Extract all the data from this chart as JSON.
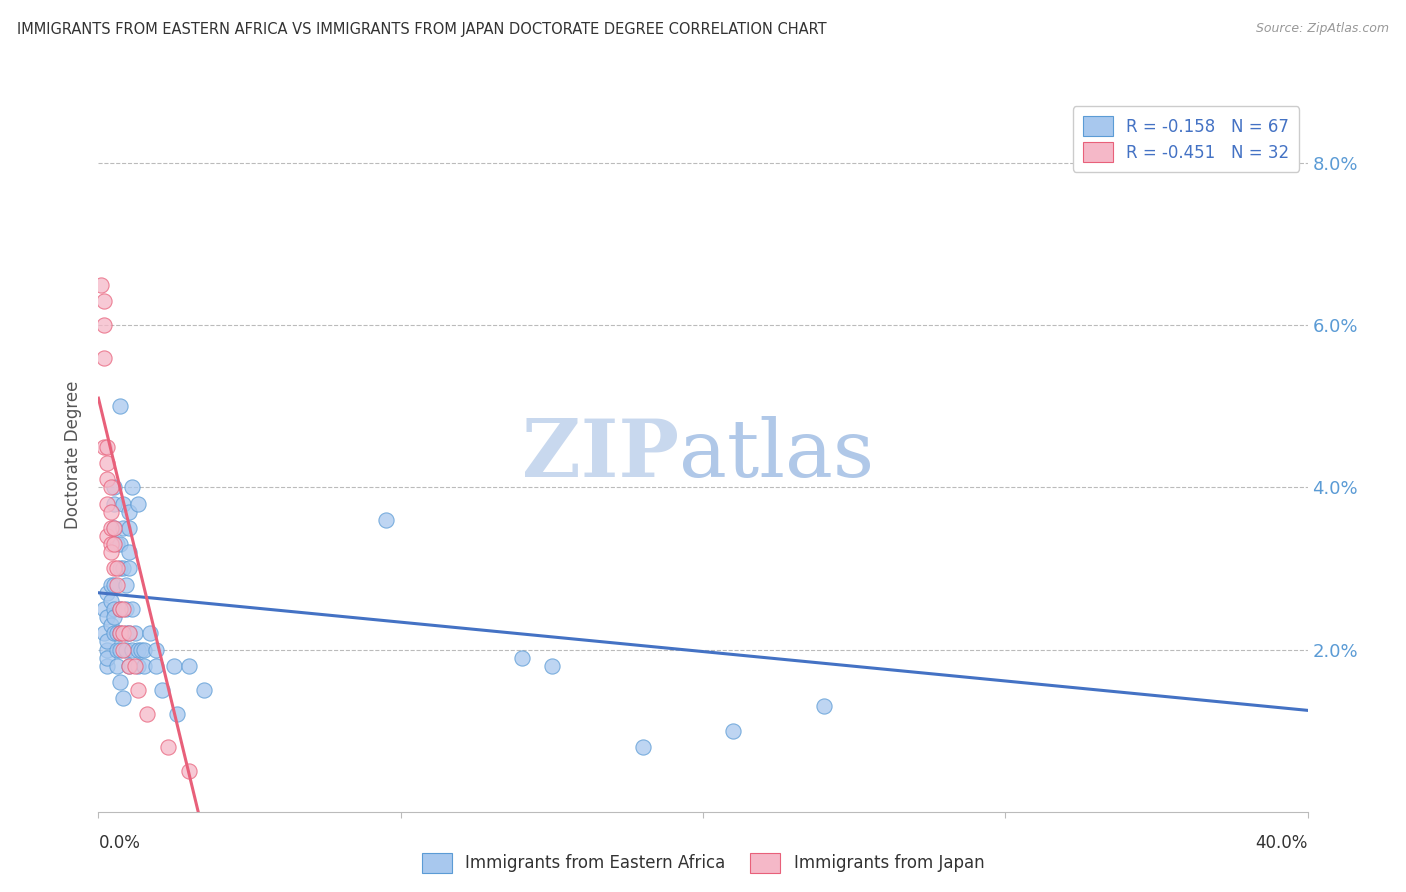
{
  "title": "IMMIGRANTS FROM EASTERN AFRICA VS IMMIGRANTS FROM JAPAN DOCTORATE DEGREE CORRELATION CHART",
  "source": "Source: ZipAtlas.com",
  "ylabel": "Doctorate Degree",
  "ytick_labels": [
    "2.0%",
    "4.0%",
    "6.0%",
    "8.0%"
  ],
  "ytick_values": [
    0.02,
    0.04,
    0.06,
    0.08
  ],
  "xlim": [
    0.0,
    0.4
  ],
  "ylim": [
    0.0,
    0.088
  ],
  "watermark_zip": "ZIP",
  "watermark_atlas": "atlas",
  "legend_blue_label": "R = -0.158   N = 67",
  "legend_pink_label": "R = -0.451   N = 32",
  "bottom_legend_blue": "Immigrants from Eastern Africa",
  "bottom_legend_pink": "Immigrants from Japan",
  "blue_color": "#A8C8EE",
  "pink_color": "#F5B8C8",
  "blue_edge_color": "#5B9BD5",
  "pink_edge_color": "#E8607A",
  "blue_line_color": "#4472C4",
  "pink_line_color": "#E8607A",
  "blue_scatter": [
    [
      0.002,
      0.025
    ],
    [
      0.002,
      0.022
    ],
    [
      0.003,
      0.02
    ],
    [
      0.003,
      0.018
    ],
    [
      0.003,
      0.027
    ],
    [
      0.003,
      0.021
    ],
    [
      0.003,
      0.019
    ],
    [
      0.003,
      0.024
    ],
    [
      0.004,
      0.028
    ],
    [
      0.004,
      0.023
    ],
    [
      0.004,
      0.026
    ],
    [
      0.005,
      0.022
    ],
    [
      0.005,
      0.025
    ],
    [
      0.005,
      0.024
    ],
    [
      0.005,
      0.028
    ],
    [
      0.005,
      0.035
    ],
    [
      0.005,
      0.038
    ],
    [
      0.005,
      0.04
    ],
    [
      0.006,
      0.033
    ],
    [
      0.006,
      0.022
    ],
    [
      0.006,
      0.018
    ],
    [
      0.006,
      0.02
    ],
    [
      0.007,
      0.025
    ],
    [
      0.007,
      0.022
    ],
    [
      0.007,
      0.033
    ],
    [
      0.007,
      0.05
    ],
    [
      0.007,
      0.02
    ],
    [
      0.007,
      0.03
    ],
    [
      0.007,
      0.016
    ],
    [
      0.008,
      0.014
    ],
    [
      0.008,
      0.03
    ],
    [
      0.008,
      0.035
    ],
    [
      0.008,
      0.038
    ],
    [
      0.009,
      0.028
    ],
    [
      0.009,
      0.025
    ],
    [
      0.009,
      0.022
    ],
    [
      0.009,
      0.02
    ],
    [
      0.01,
      0.03
    ],
    [
      0.01,
      0.035
    ],
    [
      0.01,
      0.037
    ],
    [
      0.01,
      0.032
    ],
    [
      0.01,
      0.022
    ],
    [
      0.01,
      0.018
    ],
    [
      0.011,
      0.04
    ],
    [
      0.011,
      0.025
    ],
    [
      0.011,
      0.02
    ],
    [
      0.012,
      0.022
    ],
    [
      0.013,
      0.038
    ],
    [
      0.013,
      0.02
    ],
    [
      0.013,
      0.018
    ],
    [
      0.014,
      0.02
    ],
    [
      0.015,
      0.018
    ],
    [
      0.015,
      0.02
    ],
    [
      0.017,
      0.022
    ],
    [
      0.019,
      0.02
    ],
    [
      0.019,
      0.018
    ],
    [
      0.021,
      0.015
    ],
    [
      0.025,
      0.018
    ],
    [
      0.026,
      0.012
    ],
    [
      0.03,
      0.018
    ],
    [
      0.035,
      0.015
    ],
    [
      0.21,
      0.01
    ],
    [
      0.24,
      0.013
    ],
    [
      0.095,
      0.036
    ],
    [
      0.14,
      0.019
    ],
    [
      0.15,
      0.018
    ],
    [
      0.18,
      0.008
    ]
  ],
  "pink_scatter": [
    [
      0.001,
      0.065
    ],
    [
      0.002,
      0.063
    ],
    [
      0.002,
      0.06
    ],
    [
      0.002,
      0.056
    ],
    [
      0.002,
      0.045
    ],
    [
      0.003,
      0.043
    ],
    [
      0.003,
      0.041
    ],
    [
      0.003,
      0.038
    ],
    [
      0.003,
      0.045
    ],
    [
      0.003,
      0.034
    ],
    [
      0.004,
      0.04
    ],
    [
      0.004,
      0.037
    ],
    [
      0.004,
      0.035
    ],
    [
      0.004,
      0.033
    ],
    [
      0.004,
      0.032
    ],
    [
      0.005,
      0.035
    ],
    [
      0.005,
      0.033
    ],
    [
      0.005,
      0.03
    ],
    [
      0.006,
      0.03
    ],
    [
      0.006,
      0.028
    ],
    [
      0.007,
      0.025
    ],
    [
      0.007,
      0.022
    ],
    [
      0.008,
      0.025
    ],
    [
      0.008,
      0.022
    ],
    [
      0.008,
      0.02
    ],
    [
      0.01,
      0.022
    ],
    [
      0.01,
      0.018
    ],
    [
      0.012,
      0.018
    ],
    [
      0.013,
      0.015
    ],
    [
      0.016,
      0.012
    ],
    [
      0.023,
      0.008
    ],
    [
      0.03,
      0.005
    ]
  ],
  "blue_trendline": [
    [
      0.0,
      0.027
    ],
    [
      0.4,
      0.0125
    ]
  ],
  "pink_trendline": [
    [
      0.0,
      0.051
    ],
    [
      0.033,
      0.0
    ]
  ]
}
